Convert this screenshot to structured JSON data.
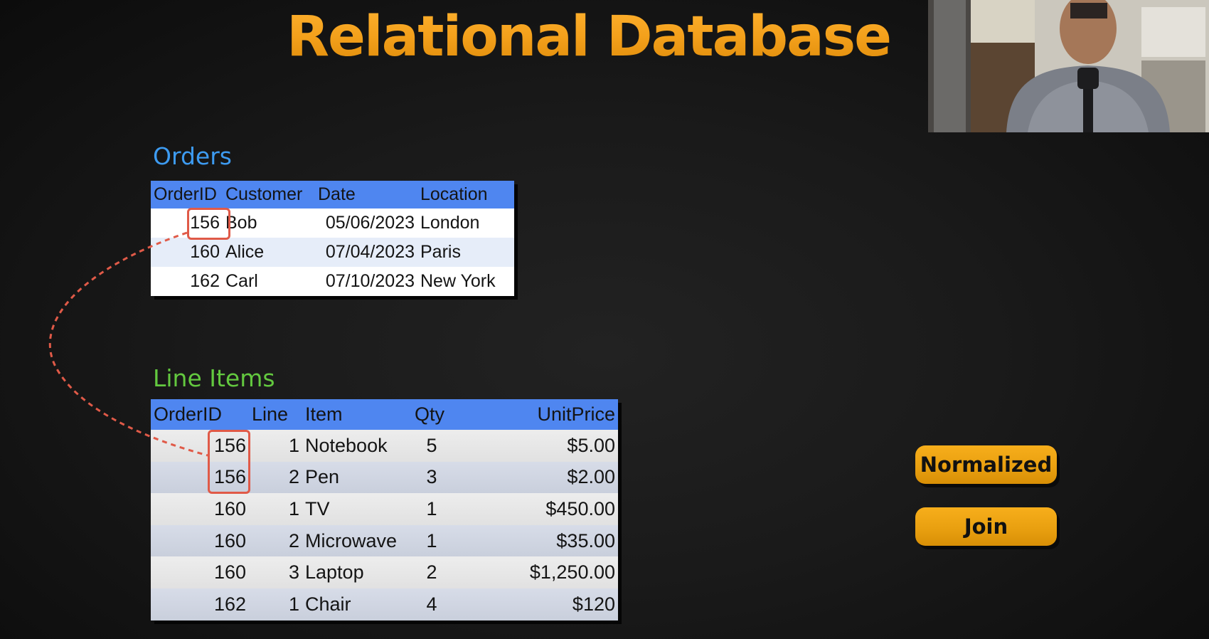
{
  "slide": {
    "title": "Relational Database"
  },
  "orders": {
    "title": "Orders",
    "columns": [
      "OrderID",
      "Customer",
      "Date",
      "Location"
    ],
    "rows": [
      {
        "order_id": "156",
        "customer": "Bob",
        "date": "05/06/2023",
        "location": "London"
      },
      {
        "order_id": "160",
        "customer": "Alice",
        "date": "07/04/2023",
        "location": "Paris"
      },
      {
        "order_id": "162",
        "customer": "Carl",
        "date": "07/10/2023",
        "location": "New York"
      }
    ]
  },
  "line_items": {
    "title": "Line Items",
    "columns": [
      "OrderID",
      "Line",
      "Item",
      "Qty",
      "UnitPrice"
    ],
    "rows": [
      {
        "order_id": "156",
        "line": "1",
        "item": "Notebook",
        "qty": "5",
        "unit_price": "$5.00"
      },
      {
        "order_id": "156",
        "line": "2",
        "item": "Pen",
        "qty": "3",
        "unit_price": "$2.00"
      },
      {
        "order_id": "160",
        "line": "1",
        "item": "TV",
        "qty": "1",
        "unit_price": "$450.00"
      },
      {
        "order_id": "160",
        "line": "2",
        "item": "Microwave",
        "qty": "1",
        "unit_price": "$35.00"
      },
      {
        "order_id": "160",
        "line": "3",
        "item": "Laptop",
        "qty": "2",
        "unit_price": "$1,250.00"
      },
      {
        "order_id": "162",
        "line": "1",
        "item": "Chair",
        "qty": "4",
        "unit_price": "$120"
      }
    ]
  },
  "buttons": {
    "normalized": "Normalized",
    "join": "Join"
  },
  "colors": {
    "title_gold": "#f3a01b",
    "orders_blue": "#3d9bf1",
    "line_items_green": "#63c93f",
    "table_header": "#4f86f0",
    "highlight_red": "#e05a48",
    "button_gold": "#e9a010"
  }
}
